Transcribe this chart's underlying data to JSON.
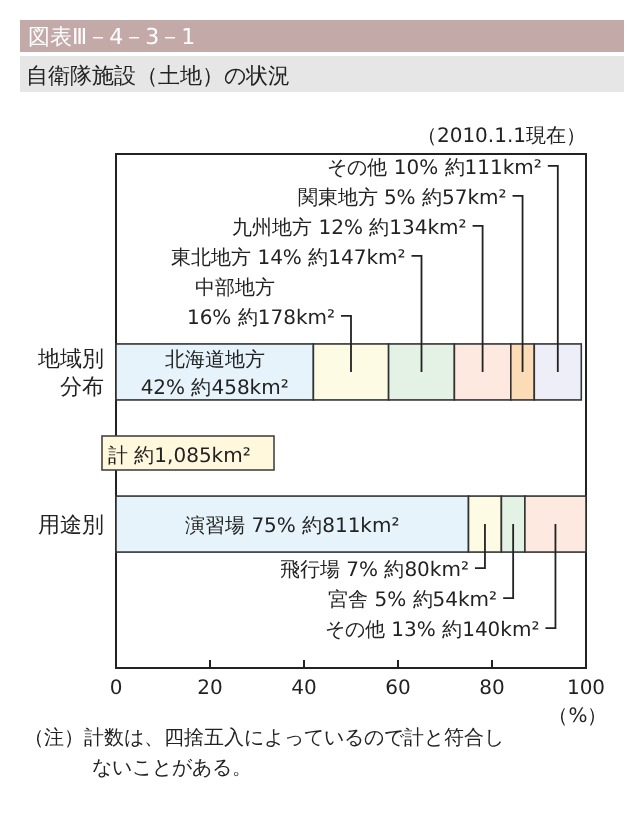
{
  "chart_data": {
    "type": "bar",
    "orientation": "horizontal",
    "stacked": true,
    "title": "図表Ⅲ－4－3－1",
    "subtitle": "自衛隊施設（土地）の状況",
    "xlabel": "（%）",
    "categories": [
      "地域別分布",
      "用途別"
    ],
    "series": [
      {
        "color": "#e6f3fb",
        "values": [
          42,
          75
        ],
        "value_labels": [
          "北海道地方\n42% 約458km²",
          "演習場 75% 約811km²"
        ]
      },
      {
        "color": "#fdfbe4",
        "values": [
          16,
          7
        ],
        "value_labels": [
          "中部地方\n16% 約178km²",
          "飛行場 7% 約80km²"
        ]
      },
      {
        "color": "#e4f1e5",
        "values": [
          14,
          5
        ],
        "value_labels": [
          "東北地方 14% 約147km²",
          "宮舎 5% 約54km²"
        ]
      },
      {
        "color": "#fde9e0",
        "values": [
          12,
          13
        ],
        "value_labels": [
          "九州地方 12% 約134km²",
          "その他 13% 約140km²"
        ]
      },
      {
        "color": "#fcdcb6",
        "values": [
          5,
          null
        ],
        "value_labels": [
          "関東地方 5% 約57km²",
          null
        ]
      },
      {
        "color": "#eeeef8",
        "values": [
          10,
          null
        ],
        "value_labels": [
          "その他 10% 約111km²",
          null
        ]
      }
    ],
    "xlim": [
      0,
      100
    ],
    "xticks": [
      0,
      20,
      40,
      60,
      80,
      100
    ],
    "grid": false,
    "annotations": [
      "（2010.1.1現在）",
      "計 約1,085km²",
      "（注）計数は、四捨五入によっているので計と符合しないことがある。"
    ]
  }
}
